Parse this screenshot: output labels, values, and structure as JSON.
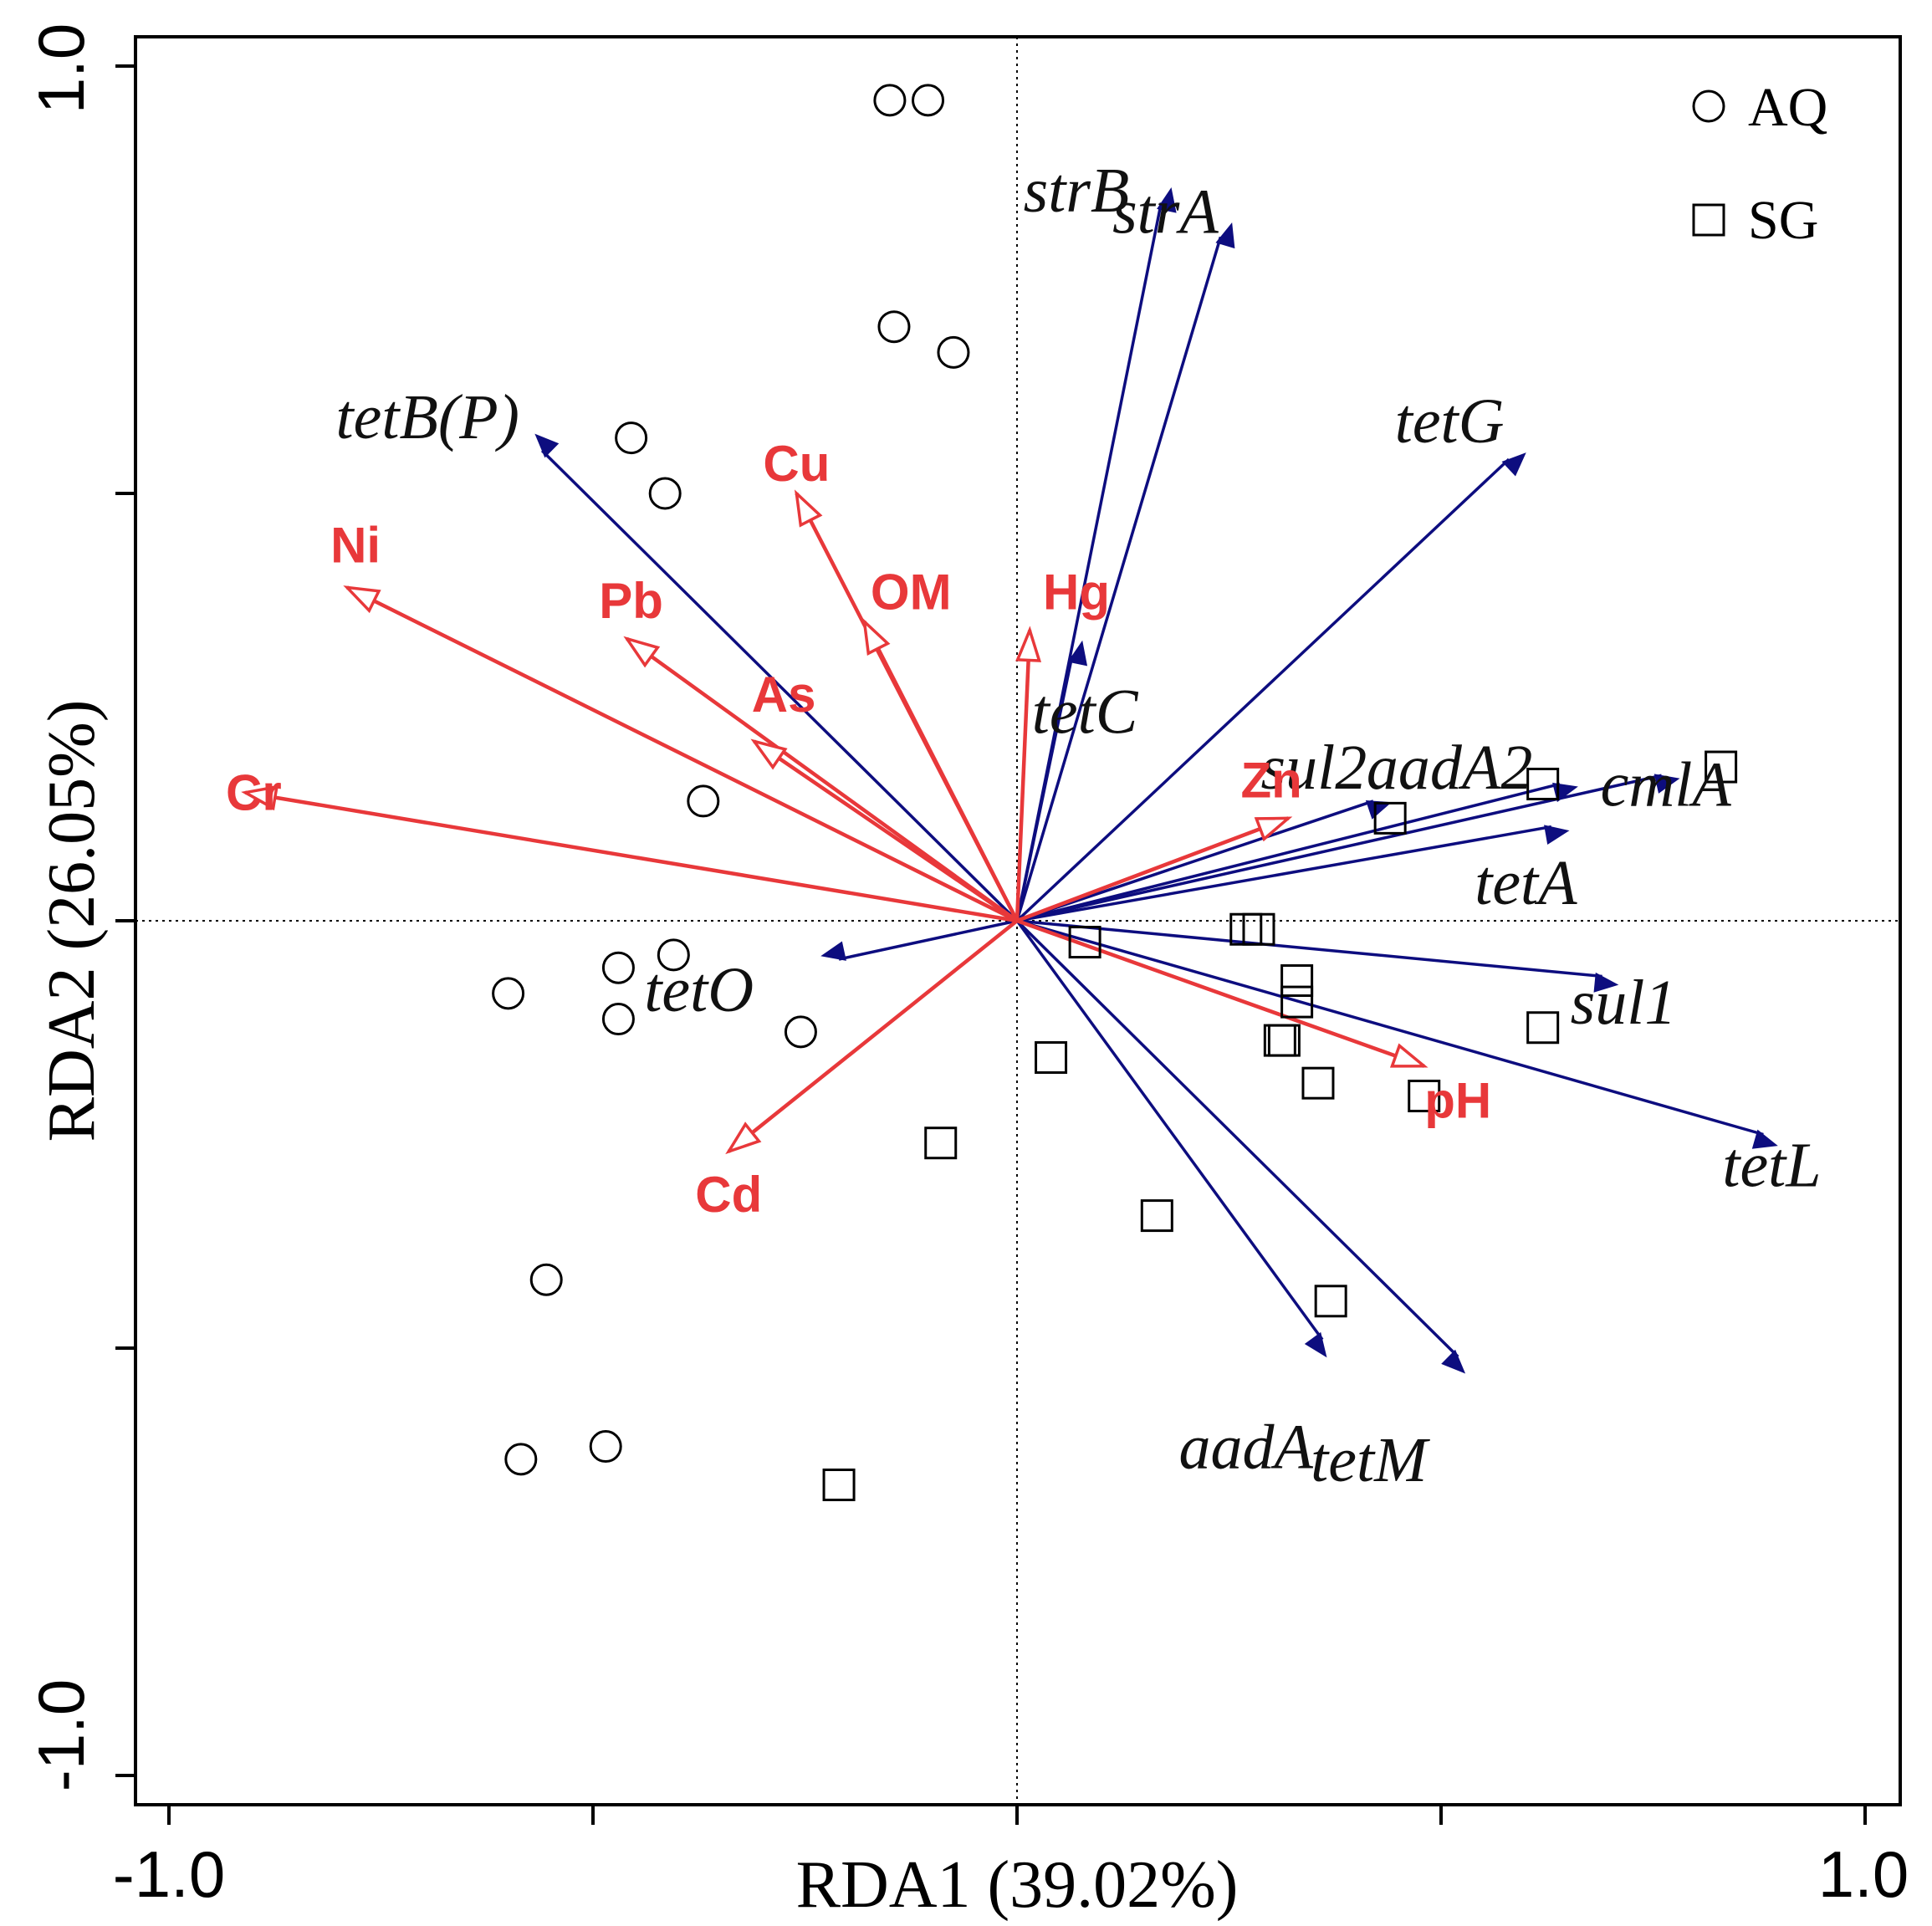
{
  "colors": {
    "gene_arrow": "#0d0d7f",
    "env_arrow": "#e8383a",
    "marker": "#000000"
  },
  "chart_data": {
    "type": "scatter",
    "title": "",
    "xlabel": "RDA1 (39.02%)",
    "ylabel": "RDA2 (26.05%)",
    "xlim": [
      -1.02,
      1.02
    ],
    "ylim": [
      -1.01,
      1.01
    ],
    "x_ticks": [
      -1.0,
      -0.5,
      0.0,
      0.5,
      1.0
    ],
    "y_ticks": [
      -1.0,
      -0.5,
      0.0,
      0.5,
      1.0
    ],
    "x_tick_labels": [
      "-1.0",
      "1.0"
    ],
    "y_tick_labels": [
      "1.0",
      "-1.0"
    ],
    "reference_lines": "dotted lines at x = 0 and y = 0",
    "legend": {
      "position": "top-right",
      "entries": [
        {
          "label": "AQ",
          "marker": "circle"
        },
        {
          "label": "SG",
          "marker": "square"
        }
      ]
    },
    "species_vectors": [
      {
        "name": "strB",
        "x": 0.17,
        "y": 0.84
      },
      {
        "name": "strA",
        "x": 0.24,
        "y": 0.8
      },
      {
        "name": "tetB(P)",
        "x": -0.56,
        "y": 0.55
      },
      {
        "name": "tetG",
        "x": 0.58,
        "y": 0.54
      },
      {
        "name": "tetC",
        "x": 0.065,
        "y": 0.31
      },
      {
        "name": "sul2",
        "x": 0.42,
        "y": 0.14
      },
      {
        "name": "aadA2",
        "x": 0.64,
        "y": 0.16
      },
      {
        "name": "cmlA",
        "x": 0.76,
        "y": 0.17
      },
      {
        "name": "tetA",
        "x": 0.63,
        "y": 0.11
      },
      {
        "name": "tetO",
        "x": -0.21,
        "y": -0.045
      },
      {
        "name": "sul1",
        "x": 0.69,
        "y": -0.065
      },
      {
        "name": "tetL",
        "x": 0.88,
        "y": -0.25
      },
      {
        "name": "aadA",
        "x": 0.36,
        "y": -0.49
      },
      {
        "name": "tetM",
        "x": 0.52,
        "y": -0.51
      }
    ],
    "environmental_vectors": [
      {
        "name": "Cu",
        "x": -0.26,
        "y": 0.5
      },
      {
        "name": "Ni",
        "x": -0.79,
        "y": 0.39
      },
      {
        "name": "Pb",
        "x": -0.46,
        "y": 0.33
      },
      {
        "name": "OM",
        "x": -0.18,
        "y": 0.35
      },
      {
        "name": "Hg",
        "x": 0.015,
        "y": 0.34
      },
      {
        "name": "As",
        "x": -0.31,
        "y": 0.21
      },
      {
        "name": "Cr",
        "x": -0.91,
        "y": 0.15
      },
      {
        "name": "Zn",
        "x": 0.32,
        "y": 0.12
      },
      {
        "name": "pH",
        "x": 0.48,
        "y": -0.17
      },
      {
        "name": "Cd",
        "x": -0.34,
        "y": -0.27
      }
    ],
    "sample_labels": [
      {
        "name": "strB",
        "x": 0.07,
        "y": 0.855
      },
      {
        "name": "strA",
        "x": 0.175,
        "y": 0.83
      },
      {
        "name": "tetB(P)",
        "x": -0.695,
        "y": 0.59
      },
      {
        "name": "tetG",
        "x": 0.51,
        "y": 0.585
      },
      {
        "name": "tetC",
        "x": 0.08,
        "y": 0.245
      },
      {
        "name": "sul2",
        "x": 0.35,
        "y": 0.18
      },
      {
        "name": "aadA2",
        "x": 0.51,
        "y": 0.18
      },
      {
        "name": "cmlA",
        "x": 0.765,
        "y": 0.16
      },
      {
        "name": "tetA",
        "x": 0.6,
        "y": 0.045
      },
      {
        "name": "tetO",
        "x": -0.375,
        "y": -0.08
      },
      {
        "name": "sul1",
        "x": 0.715,
        "y": -0.095
      },
      {
        "name": "tetL",
        "x": 0.89,
        "y": -0.285
      },
      {
        "name": "aadA",
        "x": 0.27,
        "y": -0.615
      },
      {
        "name": "tetM",
        "x": 0.415,
        "y": -0.63
      }
    ],
    "env_labels": [
      {
        "name": "Cu",
        "x": -0.26,
        "y": 0.535
      },
      {
        "name": "Ni",
        "x": -0.78,
        "y": 0.44
      },
      {
        "name": "Pb",
        "x": -0.455,
        "y": 0.375
      },
      {
        "name": "OM",
        "x": -0.125,
        "y": 0.385
      },
      {
        "name": "Hg",
        "x": 0.07,
        "y": 0.385
      },
      {
        "name": "As",
        "x": -0.275,
        "y": 0.265
      },
      {
        "name": "Cr",
        "x": -0.9,
        "y": 0.15
      },
      {
        "name": "Zn",
        "x": 0.3,
        "y": 0.165
      },
      {
        "name": "pH",
        "x": 0.52,
        "y": -0.21
      },
      {
        "name": "Cd",
        "x": -0.34,
        "y": -0.32
      }
    ],
    "samples": {
      "AQ": [
        {
          "x": -0.15,
          "y": 0.96
        },
        {
          "x": -0.105,
          "y": 0.96
        },
        {
          "x": -0.145,
          "y": 0.695
        },
        {
          "x": -0.075,
          "y": 0.665
        },
        {
          "x": -0.455,
          "y": 0.565
        },
        {
          "x": -0.415,
          "y": 0.5
        },
        {
          "x": -0.37,
          "y": 0.14
        },
        {
          "x": -0.405,
          "y": -0.04
        },
        {
          "x": -0.47,
          "y": -0.055
        },
        {
          "x": -0.6,
          "y": -0.085
        },
        {
          "x": -0.47,
          "y": -0.115
        },
        {
          "x": -0.255,
          "y": -0.13
        },
        {
          "x": -0.555,
          "y": -0.42
        },
        {
          "x": -0.585,
          "y": -0.63
        },
        {
          "x": -0.485,
          "y": -0.615
        }
      ],
      "SG": [
        {
          "x": 0.83,
          "y": 0.18
        },
        {
          "x": 0.62,
          "y": 0.16
        },
        {
          "x": 0.44,
          "y": 0.12
        },
        {
          "x": 0.27,
          "y": -0.01
        },
        {
          "x": 0.285,
          "y": -0.01
        },
        {
          "x": 0.08,
          "y": -0.025
        },
        {
          "x": 0.33,
          "y": -0.07
        },
        {
          "x": 0.33,
          "y": -0.095
        },
        {
          "x": 0.62,
          "y": -0.125
        },
        {
          "x": 0.31,
          "y": -0.14
        },
        {
          "x": 0.315,
          "y": -0.14
        },
        {
          "x": 0.04,
          "y": -0.16
        },
        {
          "x": 0.355,
          "y": -0.19
        },
        {
          "x": 0.48,
          "y": -0.205
        },
        {
          "x": -0.09,
          "y": -0.26
        },
        {
          "x": 0.165,
          "y": -0.345
        },
        {
          "x": 0.37,
          "y": -0.445
        },
        {
          "x": -0.21,
          "y": -0.66
        }
      ]
    }
  }
}
